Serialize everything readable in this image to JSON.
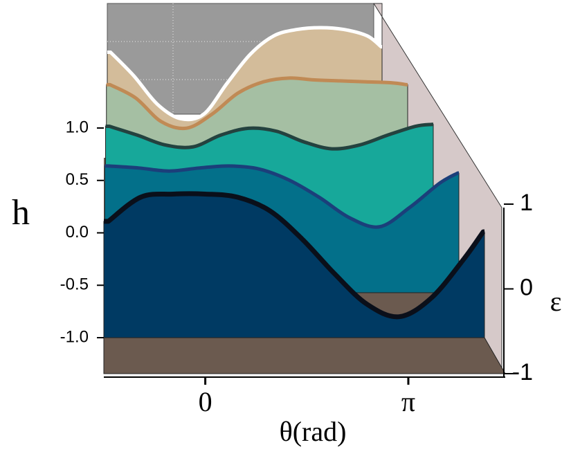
{
  "chart_data": {
    "type": "waterfall",
    "y_label": "h",
    "x_label": "θ(rad)",
    "z_label": "ε",
    "x": [
      -1.5,
      -1,
      -0.5,
      0,
      0.5,
      1,
      1.5,
      2,
      2.5,
      3,
      3.5,
      4,
      4.3
    ],
    "xlim": [
      -1.57,
      4.32
    ],
    "xticks": [
      0,
      {
        "value": 3.1416,
        "label": "π"
      }
    ],
    "ylim": [
      -1,
      1
    ],
    "yticks": [
      {
        "value": -1,
        "label": "-1.0"
      },
      -0.5,
      {
        "value": 0,
        "label": "0.0"
      },
      0.5,
      {
        "value": 1,
        "label": "1.0"
      }
    ],
    "zlim": [
      -1,
      1
    ],
    "zticks": [
      -1,
      0,
      1
    ],
    "series": [
      {
        "z": -1,
        "color": "#003a63",
        "line_color": "#0a0f1a",
        "values": [
          0.11,
          0.34,
          0.37,
          0.37,
          0.34,
          0.21,
          -0.06,
          -0.39,
          -0.68,
          -0.8,
          -0.62,
          -0.25,
          0.01
        ]
      },
      {
        "z": -0.5,
        "color": "#03708a",
        "line_color": "#1b3f7a",
        "values": [
          0.25,
          0.23,
          0.2,
          0.23,
          0.25,
          0.22,
          0.11,
          -0.06,
          -0.26,
          -0.35,
          -0.16,
          0.08,
          0.18
        ]
      },
      {
        "z": 0,
        "color": "#17a89a",
        "line_color": "#24423f",
        "values": [
          0.24,
          0.15,
          0.05,
          0.03,
          0.15,
          0.22,
          0.19,
          0.08,
          0.01,
          0.05,
          0.15,
          0.24,
          0.26
        ]
      },
      {
        "z": 0.5,
        "color": "#a5bfa3",
        "line_color": "#c08a55",
        "values": [
          0.25,
          0.11,
          -0.14,
          -0.21,
          -0.06,
          0.16,
          0.28,
          0.32,
          0.3,
          0.29,
          0.28,
          0.27,
          0.25
        ]
      },
      {
        "z": 1,
        "color": "#d3bc9a",
        "line_color": "#ffffff",
        "values": [
          0.16,
          -0.1,
          -0.41,
          -0.57,
          -0.52,
          -0.18,
          0.14,
          0.34,
          0.41,
          0.43,
          0.41,
          0.34,
          0.22
        ]
      }
    ]
  }
}
